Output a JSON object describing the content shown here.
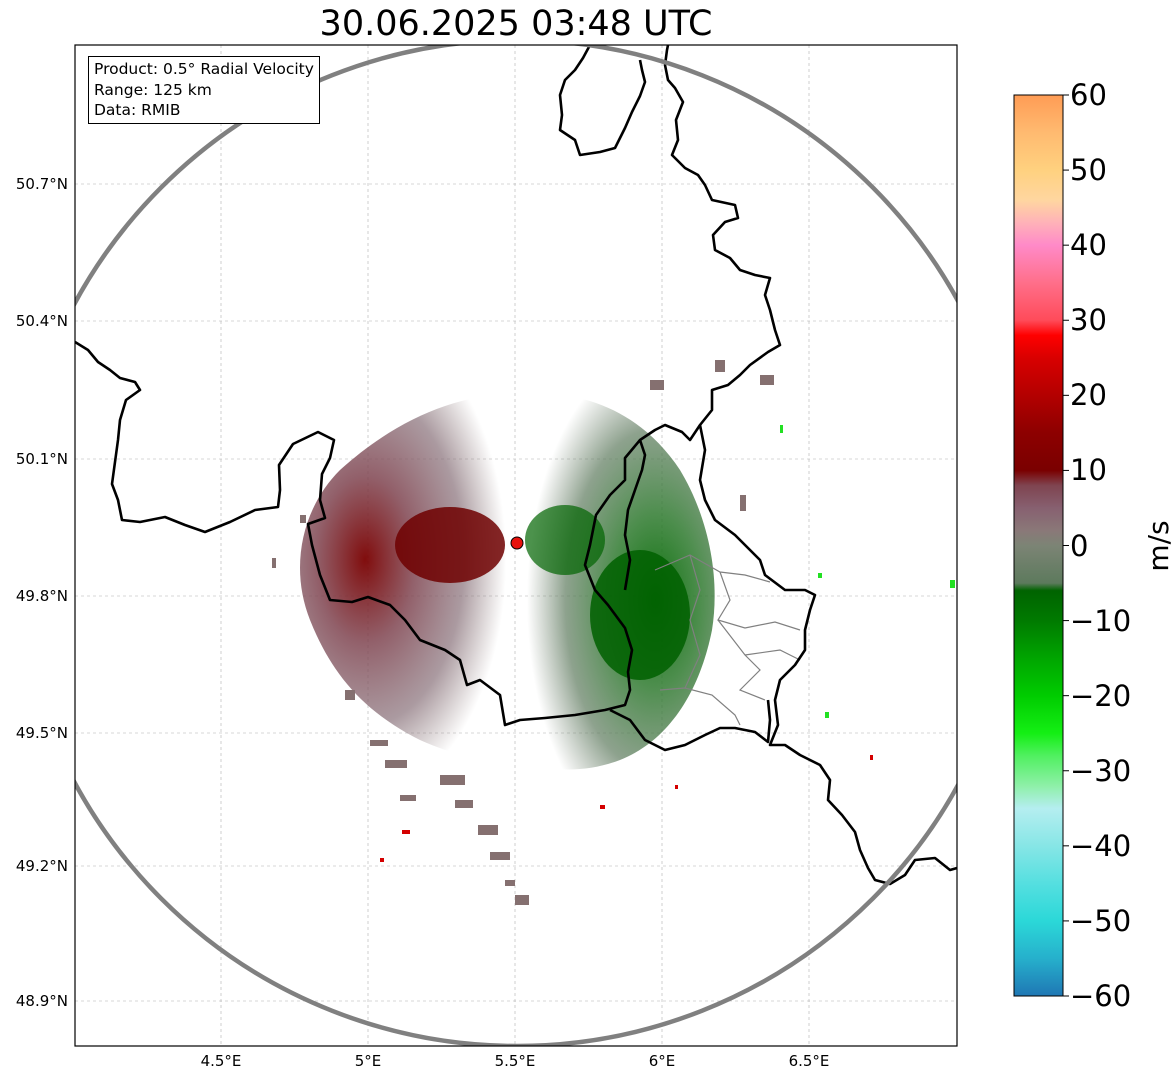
{
  "title": "30.06.2025 03:48 UTC",
  "info_box": {
    "product": "Product: 0.5° Radial Velocity",
    "range": "Range: 125 km",
    "data": "Data: RMIB"
  },
  "map": {
    "extent": {
      "lon_min": 4.0,
      "lon_max": 7.0,
      "lat_min": 48.8,
      "lat_max": 50.8
    },
    "lat_ticks": [
      "50.7°N",
      "50.4°N",
      "50.1°N",
      "49.8°N",
      "49.5°N",
      "49.2°N",
      "48.9°N"
    ],
    "lon_ticks": [
      "4.5°E",
      "5°E",
      "5.5°E",
      "6°E",
      "6.5°E"
    ],
    "radar_site": {
      "lon": 5.5056,
      "lat": 49.9142
    },
    "range_km": 125,
    "colors": {
      "range_ring": "#808080",
      "border": "#000000",
      "admin_border": "#808080",
      "site_marker": "#e8120d"
    }
  },
  "colorbar": {
    "label": "m/s",
    "min": -60,
    "max": 60,
    "ticks": [
      "60",
      "50",
      "40",
      "30",
      "20",
      "10",
      "0",
      "−10",
      "−20",
      "−30",
      "−40",
      "−50",
      "−60"
    ],
    "tick_values": [
      60,
      50,
      40,
      30,
      20,
      10,
      0,
      -10,
      -20,
      -30,
      -40,
      -50,
      -60
    ],
    "stops": [
      [
        -60,
        "#1f77b4"
      ],
      [
        -55,
        "#26b0cc"
      ],
      [
        -50,
        "#2bd8d8"
      ],
      [
        -45,
        "#55dfe0"
      ],
      [
        -40,
        "#87e6e6"
      ],
      [
        -35,
        "#b5eef0"
      ],
      [
        -32,
        "#8ef0a8"
      ],
      [
        -28,
        "#50f060"
      ],
      [
        -25,
        "#14ef14"
      ],
      [
        -20,
        "#00cc00"
      ],
      [
        -15,
        "#00a500"
      ],
      [
        -10,
        "#007a00"
      ],
      [
        -6,
        "#006300"
      ],
      [
        -5,
        "#5d7a5d"
      ],
      [
        0,
        "#7c8475"
      ],
      [
        2,
        "#8a7878"
      ],
      [
        5,
        "#876070"
      ],
      [
        8,
        "#7f4450"
      ],
      [
        10,
        "#7a0000"
      ],
      [
        15,
        "#8d0000"
      ],
      [
        20,
        "#b30000"
      ],
      [
        25,
        "#d90000"
      ],
      [
        28,
        "#ff0000"
      ],
      [
        30,
        "#ff4b5a"
      ],
      [
        35,
        "#ff6f8a"
      ],
      [
        40,
        "#ff8ac8"
      ],
      [
        43,
        "#ffb2b8"
      ],
      [
        46,
        "#ffd6a0"
      ],
      [
        50,
        "#ffd17f"
      ],
      [
        55,
        "#ffba70"
      ],
      [
        60,
        "#ff9c55"
      ]
    ]
  }
}
